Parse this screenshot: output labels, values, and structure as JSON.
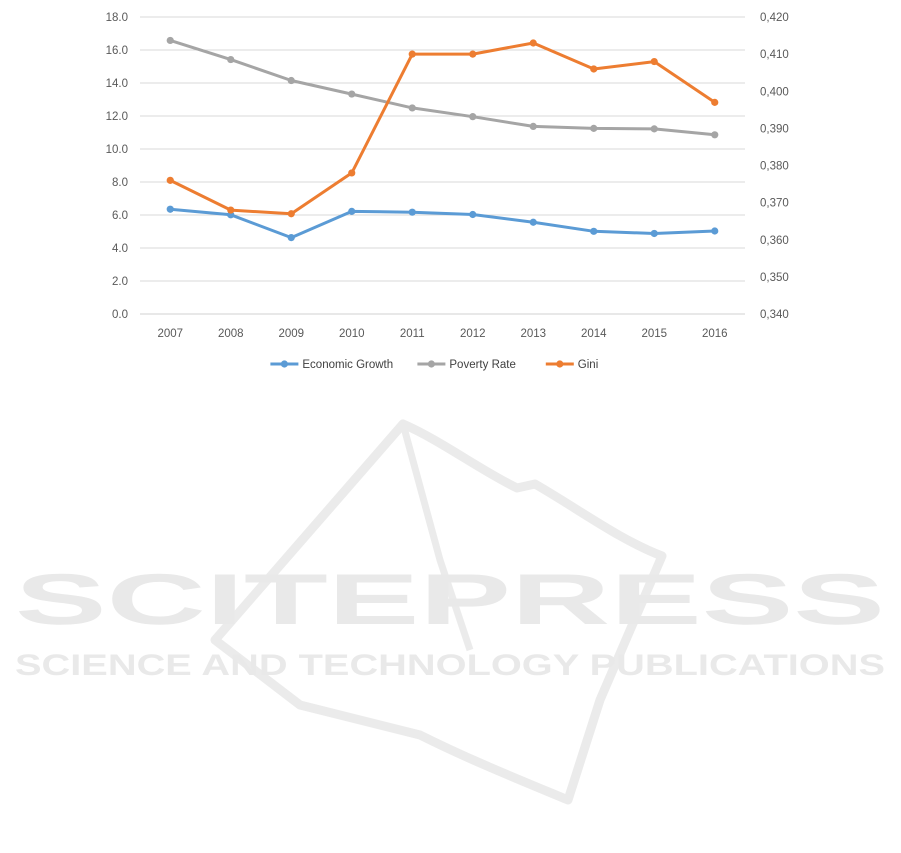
{
  "watermark": {
    "title": "SCITEPRESS",
    "subtitle": "SCIENCE AND TECHNOLOGY PUBLICATIONS"
  },
  "chart_data": {
    "type": "line",
    "title": "",
    "xlabel": "",
    "ylabel": "",
    "x": [
      "2007",
      "2008",
      "2009",
      "2010",
      "2011",
      "2012",
      "2013",
      "2014",
      "2015",
      "2016"
    ],
    "y_left": {
      "ticks": [
        "0.0",
        "2.0",
        "4.0",
        "6.0",
        "8.0",
        "10.0",
        "12.0",
        "14.0",
        "16.0",
        "18.0"
      ],
      "range": [
        0,
        18
      ]
    },
    "y_right": {
      "ticks": [
        "0,340",
        "0,350",
        "0,360",
        "0,370",
        "0,380",
        "0,390",
        "0,400",
        "0,410",
        "0,420"
      ],
      "range": [
        0.34,
        0.42
      ]
    },
    "grid": true,
    "legend_position": "bottom",
    "series": [
      {
        "name": "Economic Growth",
        "axis": "left",
        "color": "#5b9bd5",
        "values": [
          6.35,
          6.01,
          4.63,
          6.22,
          6.17,
          6.03,
          5.56,
          5.01,
          4.88,
          5.03
        ]
      },
      {
        "name": "Poverty Rate",
        "axis": "left",
        "color": "#a5a5a5",
        "values": [
          16.58,
          15.42,
          14.15,
          13.33,
          12.49,
          11.96,
          11.37,
          11.25,
          11.22,
          10.86
        ]
      },
      {
        "name": "Gini",
        "axis": "right",
        "color": "#ed7d31",
        "values": [
          0.376,
          0.368,
          0.367,
          0.378,
          0.41,
          0.41,
          0.413,
          0.406,
          0.408,
          0.397
        ]
      }
    ]
  }
}
